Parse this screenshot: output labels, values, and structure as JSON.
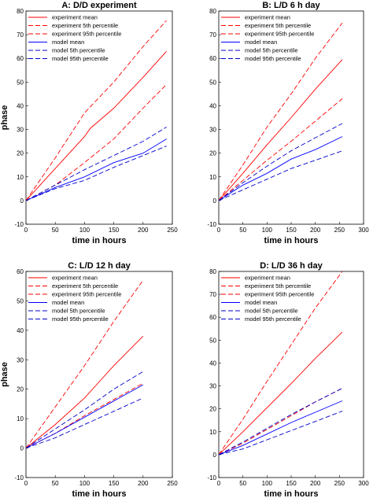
{
  "chart_data": [
    {
      "type": "line",
      "title": "A:  D/D experiment",
      "xlabel": "time in hours",
      "ylabel": "phase",
      "xlim": [
        0,
        250
      ],
      "ylim": [
        -10,
        80
      ],
      "xticks": [
        "0",
        "50",
        "100",
        "150",
        "200",
        "250"
      ],
      "yticks": [
        "-10",
        "0",
        "10",
        "20",
        "30",
        "40",
        "50",
        "60",
        "70",
        "80"
      ],
      "legend_position": "top-left",
      "series": [
        {
          "name": "experiment mean",
          "color": "#ff0000",
          "style": "solid",
          "x": [
            0,
            50,
            100,
            110,
            150,
            200,
            240
          ],
          "y": [
            0,
            13.5,
            27,
            30.5,
            39,
            52,
            63
          ]
        },
        {
          "name": "experiment 5th percentile",
          "color": "#ff0000",
          "style": "dashed",
          "x": [
            0,
            50,
            100,
            150,
            200,
            240
          ],
          "y": [
            0,
            6.5,
            16,
            26,
            39,
            49
          ]
        },
        {
          "name": "experiment 95th percentile",
          "color": "#ff0000",
          "style": "dashed",
          "x": [
            0,
            50,
            100,
            150,
            200,
            240
          ],
          "y": [
            0,
            18,
            37,
            50,
            65,
            76
          ]
        },
        {
          "name": "model mean",
          "color": "#0000ff",
          "style": "solid",
          "x": [
            0,
            50,
            100,
            150,
            200,
            240
          ],
          "y": [
            0,
            5.5,
            10,
            16,
            20,
            26
          ]
        },
        {
          "name": "model 5th percentile",
          "color": "#0000cc",
          "style": "dashed",
          "x": [
            0,
            50,
            100,
            150,
            200,
            240
          ],
          "y": [
            0,
            5,
            8.5,
            14,
            19,
            23
          ]
        },
        {
          "name": "model 95th percentile",
          "color": "#0000cc",
          "style": "dashed",
          "x": [
            0,
            50,
            100,
            150,
            200,
            240
          ],
          "y": [
            0,
            6.5,
            13,
            19,
            25,
            31
          ]
        }
      ]
    },
    {
      "type": "line",
      "title": "B:  L/D 6 h day",
      "xlabel": "time in hours",
      "ylabel": "",
      "xlim": [
        0,
        300
      ],
      "ylim": [
        -10,
        80
      ],
      "xticks": [
        "0",
        "50",
        "100",
        "150",
        "200",
        "250",
        "300"
      ],
      "yticks": [
        "-10",
        "0",
        "10",
        "20",
        "30",
        "40",
        "50",
        "60",
        "70",
        "80"
      ],
      "legend_position": "top-left",
      "series": [
        {
          "name": "experiment mean",
          "color": "#ff0000",
          "style": "solid",
          "x": [
            0,
            50,
            100,
            150,
            200,
            256
          ],
          "y": [
            0,
            11.5,
            23.5,
            35,
            47,
            59.5
          ]
        },
        {
          "name": "experiment 5th percentile",
          "color": "#ff0000",
          "style": "dashed",
          "x": [
            0,
            50,
            100,
            150,
            200,
            256
          ],
          "y": [
            0,
            8.5,
            17,
            25,
            33.5,
            43
          ]
        },
        {
          "name": "experiment 95th percentile",
          "color": "#ff0000",
          "style": "dashed",
          "x": [
            0,
            50,
            100,
            150,
            200,
            256
          ],
          "y": [
            0,
            15,
            31,
            45,
            60,
            75
          ]
        },
        {
          "name": "model mean",
          "color": "#0000ff",
          "style": "solid",
          "x": [
            0,
            50,
            100,
            150,
            200,
            256
          ],
          "y": [
            0,
            6.5,
            11.5,
            17.5,
            21.5,
            27
          ]
        },
        {
          "name": "model 5th percentile",
          "color": "#0000cc",
          "style": "dashed",
          "x": [
            0,
            50,
            100,
            150,
            200,
            256
          ],
          "y": [
            0,
            4.5,
            9,
            13.5,
            17,
            21
          ]
        },
        {
          "name": "model 95th percentile",
          "color": "#0000cc",
          "style": "dashed",
          "x": [
            0,
            50,
            100,
            150,
            200,
            256
          ],
          "y": [
            0,
            7.5,
            14.5,
            21,
            26.5,
            32.5
          ]
        }
      ]
    },
    {
      "type": "line",
      "title": "C:  L/D 12 h day",
      "xlabel": "time in hours",
      "ylabel": "phase",
      "xlim": [
        0,
        250
      ],
      "ylim": [
        -10,
        60
      ],
      "xticks": [
        "0",
        "50",
        "100",
        "150",
        "200",
        "250"
      ],
      "yticks": [
        "-10",
        "0",
        "10",
        "20",
        "30",
        "40",
        "50",
        "60"
      ],
      "legend_position": "top-left",
      "series": [
        {
          "name": "experiment mean",
          "color": "#ff0000",
          "style": "solid",
          "x": [
            0,
            50,
            100,
            150,
            200
          ],
          "y": [
            0,
            8,
            17,
            28,
            38
          ]
        },
        {
          "name": "experiment 5th percentile",
          "color": "#ff0000",
          "style": "dashed",
          "x": [
            0,
            50,
            100,
            150,
            200
          ],
          "y": [
            0,
            5,
            11,
            16.5,
            22
          ]
        },
        {
          "name": "experiment 95th percentile",
          "color": "#ff0000",
          "style": "dashed",
          "x": [
            0,
            50,
            100,
            150,
            200
          ],
          "y": [
            0,
            14,
            28,
            43,
            57
          ]
        },
        {
          "name": "model mean",
          "color": "#0000ff",
          "style": "solid",
          "x": [
            0,
            50,
            100,
            150,
            200
          ],
          "y": [
            0,
            5,
            10.5,
            16,
            21.5
          ]
        },
        {
          "name": "model 5th percentile",
          "color": "#0000cc",
          "style": "dashed",
          "x": [
            0,
            50,
            100,
            150,
            200
          ],
          "y": [
            0,
            3.5,
            8,
            12.5,
            17
          ]
        },
        {
          "name": "model 95th percentile",
          "color": "#0000cc",
          "style": "dashed",
          "x": [
            0,
            50,
            100,
            150,
            200
          ],
          "y": [
            0,
            6.5,
            13,
            20,
            26
          ]
        }
      ]
    },
    {
      "type": "line",
      "title": "D:  L/D 36 h day",
      "xlabel": "time in hours",
      "ylabel": "",
      "xlim": [
        0,
        300
      ],
      "ylim": [
        -10,
        80
      ],
      "xticks": [
        "0",
        "50",
        "100",
        "150",
        "200",
        "250",
        "300"
      ],
      "yticks": [
        "-10",
        "0",
        "10",
        "20",
        "30",
        "40",
        "50",
        "60",
        "70",
        "80"
      ],
      "legend_position": "top-left",
      "series": [
        {
          "name": "experiment mean",
          "color": "#ff0000",
          "style": "solid",
          "x": [
            0,
            50,
            100,
            150,
            200,
            256
          ],
          "y": [
            0,
            10,
            20.5,
            31,
            42,
            53.5
          ]
        },
        {
          "name": "experiment 5th percentile",
          "color": "#ff0000",
          "style": "dashed",
          "x": [
            0,
            50,
            100,
            150,
            200,
            256
          ],
          "y": [
            0,
            5,
            11,
            17,
            23,
            29
          ]
        },
        {
          "name": "experiment 95th percentile",
          "color": "#ff0000",
          "style": "dashed",
          "x": [
            0,
            50,
            100,
            150,
            200,
            256
          ],
          "y": [
            0,
            15.5,
            32,
            48,
            64,
            80
          ]
        },
        {
          "name": "model mean",
          "color": "#0000ff",
          "style": "solid",
          "x": [
            0,
            50,
            100,
            150,
            200,
            256
          ],
          "y": [
            0,
            4,
            9,
            14,
            18.5,
            23.5
          ]
        },
        {
          "name": "model 5th percentile",
          "color": "#0000cc",
          "style": "dashed",
          "x": [
            0,
            50,
            100,
            150,
            200,
            256
          ],
          "y": [
            0,
            2.5,
            6.5,
            10.5,
            14.5,
            19
          ]
        },
        {
          "name": "model 95th percentile",
          "color": "#0000cc",
          "style": "dashed",
          "x": [
            0,
            50,
            100,
            150,
            200,
            256
          ],
          "y": [
            0,
            5.5,
            11.5,
            17.5,
            23,
            29
          ]
        }
      ]
    }
  ]
}
